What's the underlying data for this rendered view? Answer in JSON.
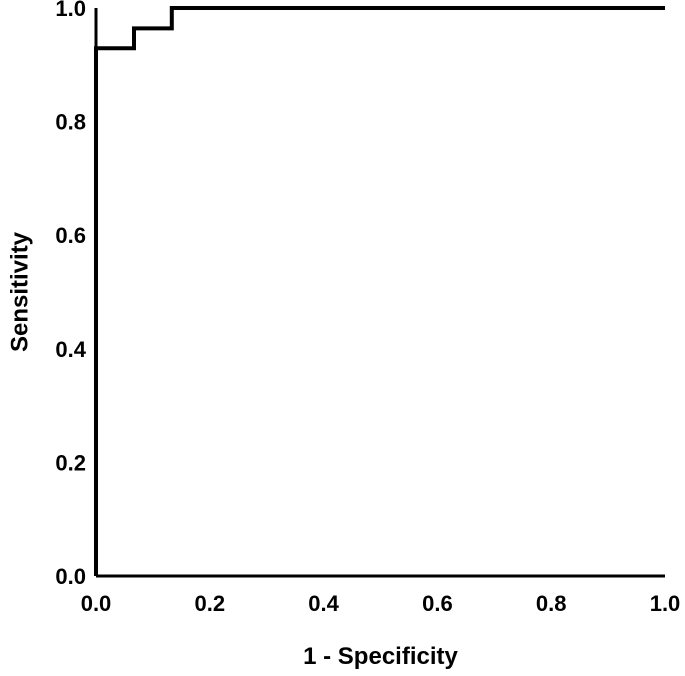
{
  "chart_data": {
    "type": "line",
    "title": "",
    "xlabel": "1 - Specificity",
    "ylabel": "Sensitivity",
    "xlim": [
      0,
      1
    ],
    "ylim": [
      0,
      1
    ],
    "xticks": [
      "0.0",
      "0.2",
      "0.4",
      "0.6",
      "0.8",
      "1.0"
    ],
    "yticks": [
      "0.0",
      "0.2",
      "0.4",
      "0.6",
      "0.8",
      "1.0"
    ],
    "grid": false,
    "legend": "none",
    "line_color": "#000000",
    "series": [
      {
        "x": [
          0.0,
          0.0,
          0.0667,
          0.0667,
          0.1333,
          0.1333,
          1.0
        ],
        "y": [
          0.0,
          0.929,
          0.929,
          0.964,
          0.964,
          1.0,
          1.0
        ]
      }
    ]
  }
}
